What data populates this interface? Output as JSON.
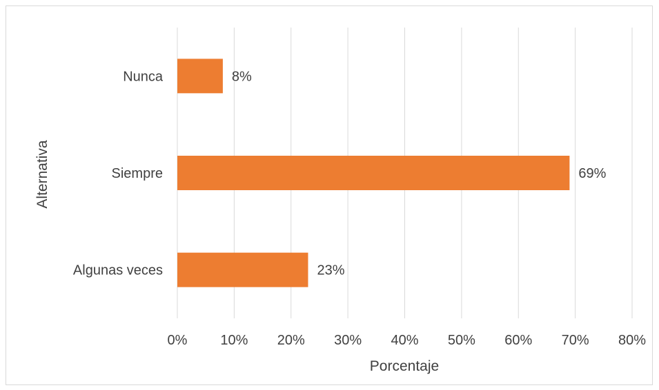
{
  "chart_data": {
    "type": "bar",
    "orientation": "horizontal",
    "categories": [
      "Nunca",
      "Siempre",
      "Algunas veces"
    ],
    "values": [
      8,
      69,
      23
    ],
    "data_labels": [
      "8%",
      "69%",
      "23%"
    ],
    "xlabel": "Porcentaje",
    "ylabel": "Alternativa",
    "xlim": [
      0,
      80
    ],
    "x_ticks": [
      0,
      10,
      20,
      30,
      40,
      50,
      60,
      70,
      80
    ],
    "x_tick_labels": [
      "0%",
      "10%",
      "20%",
      "30%",
      "40%",
      "50%",
      "60%",
      "70%",
      "80%"
    ],
    "grid": "vertical",
    "legend": "none",
    "bar_color": "#ed7d31"
  }
}
